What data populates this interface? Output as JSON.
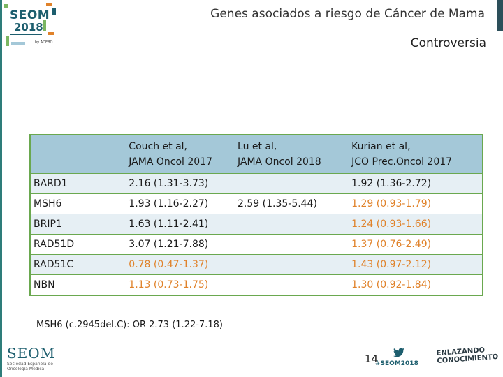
{
  "header": {
    "logo_word": "SEOM",
    "logo_year": "2018",
    "logo_tag": "by ADEBO",
    "title": "Genes asociados a riesgo de Cáncer de Mama",
    "subtitle": "Controversia"
  },
  "table": {
    "columns": [
      "",
      "Couch et al,\nJAMA Oncol 2017",
      "Lu et al,\nJAMA Oncol 2018",
      "Kurian et al,\nJCO Prec.Oncol 2017"
    ],
    "rows": [
      {
        "gene": "BARD1",
        "couch": "2.16 (1.31-3.73)",
        "couch_color": "black",
        "lu": "",
        "kurian": "1.92 (1.36-2.72)",
        "kurian_color": "black"
      },
      {
        "gene": "MSH6",
        "couch": "1.93 (1.16-2.27)",
        "couch_color": "black",
        "lu": "2.59 (1.35-5.44)",
        "kurian": "1.29 (0.93-1.79)",
        "kurian_color": "orange"
      },
      {
        "gene": "BRIP1",
        "couch": "1.63 (1.11-2.41)",
        "couch_color": "black",
        "lu": "",
        "kurian": "1.24 (0.93-1.66)",
        "kurian_color": "orange"
      },
      {
        "gene": "RAD51D",
        "couch": "3.07 (1.21-7.88)",
        "couch_color": "black",
        "lu": "",
        "kurian": "1.37 (0.76-2.49)",
        "kurian_color": "orange"
      },
      {
        "gene": "RAD51C",
        "couch": "0.78 (0.47-1.37)",
        "couch_color": "orange",
        "lu": "",
        "kurian": "1.43 (0.97-2.12)",
        "kurian_color": "orange"
      },
      {
        "gene": "NBN",
        "couch": "1.13 (0.73-1.75)",
        "couch_color": "orange",
        "lu": "",
        "kurian": "1.30 (0.92-1.84)",
        "kurian_color": "orange"
      }
    ]
  },
  "footnote": "MSH6 (c.2945del.C): OR 2.73 (1.22-7.18)",
  "footer": {
    "seom_word": "SEOM",
    "seom_sub": "Sociedad Española de Oncología Médica",
    "page_number": "14",
    "hashtag": "#SEOM2018",
    "twitter_icon": "twitter-bird-icon",
    "motto_line1": "ENLAZANDO",
    "motto_line2": "CONOCIMIENTO"
  },
  "colors": {
    "header_fill": "#a4c8d8",
    "row_shade": "#e6eff4",
    "border": "#6aa84f",
    "highlight": "#e0822a",
    "brand": "#1d5e6e"
  }
}
